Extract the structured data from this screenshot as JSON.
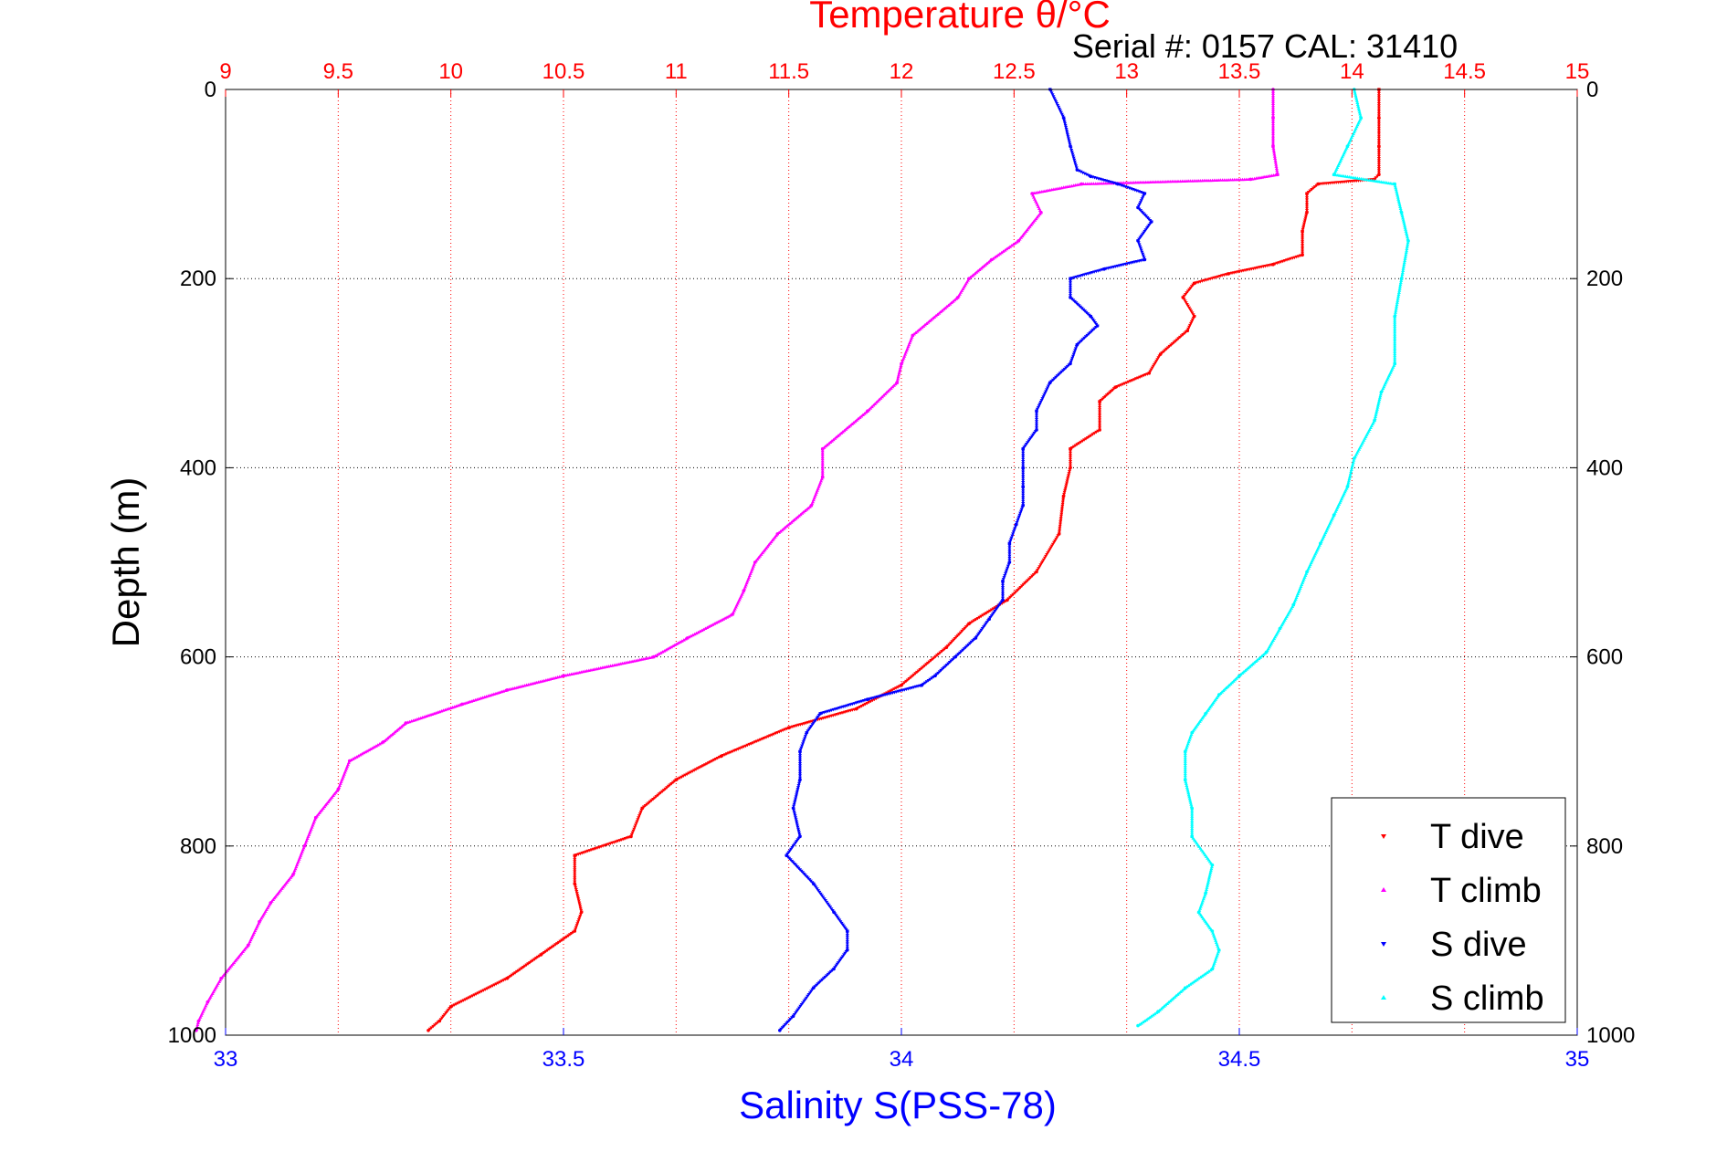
{
  "chart_data": {
    "type": "scatter",
    "title_top": "Temperature θ/°C",
    "serial_text": "Serial #: 0157  CAL: 31410",
    "xlabel_bottom": "Salinity S(PSS-78)",
    "ylabel": "Depth (m)",
    "top_axis": {
      "range": [
        9,
        15
      ],
      "ticks": [
        "9",
        "9.5",
        "10",
        "10.5",
        "11",
        "11.5",
        "12",
        "12.5",
        "13",
        "13.5",
        "14",
        "14.5",
        "15"
      ],
      "color": "#ff0000"
    },
    "bottom_axis": {
      "range": [
        33,
        35
      ],
      "ticks": [
        "33",
        "33.5",
        "34",
        "34.5",
        "35"
      ],
      "color": "#0000ff"
    },
    "y_axis": {
      "range": [
        0,
        1000
      ],
      "reversed": true,
      "ticks": [
        "0",
        "200",
        "400",
        "600",
        "800",
        "1000"
      ]
    },
    "grid": true,
    "legend_position": "bottom-right",
    "series": [
      {
        "name": "T dive",
        "axis": "temperature",
        "color": "#ff0000",
        "marker": "triangle-down",
        "points": [
          [
            14.12,
            0
          ],
          [
            14.12,
            30
          ],
          [
            14.12,
            60
          ],
          [
            14.12,
            90
          ],
          [
            14.1,
            95
          ],
          [
            13.85,
            100
          ],
          [
            13.8,
            110
          ],
          [
            13.8,
            130
          ],
          [
            13.78,
            150
          ],
          [
            13.78,
            175
          ],
          [
            13.65,
            185
          ],
          [
            13.45,
            195
          ],
          [
            13.3,
            205
          ],
          [
            13.25,
            220
          ],
          [
            13.3,
            240
          ],
          [
            13.27,
            255
          ],
          [
            13.15,
            280
          ],
          [
            13.1,
            300
          ],
          [
            12.95,
            315
          ],
          [
            12.88,
            330
          ],
          [
            12.88,
            360
          ],
          [
            12.75,
            380
          ],
          [
            12.75,
            400
          ],
          [
            12.72,
            430
          ],
          [
            12.7,
            470
          ],
          [
            12.6,
            510
          ],
          [
            12.47,
            540
          ],
          [
            12.3,
            565
          ],
          [
            12.2,
            590
          ],
          [
            12.0,
            630
          ],
          [
            11.8,
            655
          ],
          [
            11.5,
            675
          ],
          [
            11.2,
            705
          ],
          [
            11.0,
            730
          ],
          [
            10.85,
            760
          ],
          [
            10.8,
            790
          ],
          [
            10.55,
            810
          ],
          [
            10.55,
            840
          ],
          [
            10.58,
            870
          ],
          [
            10.55,
            890
          ],
          [
            10.4,
            915
          ],
          [
            10.25,
            940
          ],
          [
            10.0,
            970
          ],
          [
            9.95,
            985
          ],
          [
            9.9,
            995
          ]
        ]
      },
      {
        "name": "T climb",
        "axis": "temperature",
        "color": "#ff00ff",
        "marker": "triangle-up",
        "points": [
          [
            13.65,
            0
          ],
          [
            13.65,
            30
          ],
          [
            13.65,
            60
          ],
          [
            13.67,
            90
          ],
          [
            13.55,
            95
          ],
          [
            12.8,
            100
          ],
          [
            12.58,
            110
          ],
          [
            12.62,
            130
          ],
          [
            12.52,
            160
          ],
          [
            12.4,
            180
          ],
          [
            12.3,
            200
          ],
          [
            12.25,
            220
          ],
          [
            12.05,
            260
          ],
          [
            12.0,
            290
          ],
          [
            11.98,
            310
          ],
          [
            11.85,
            340
          ],
          [
            11.65,
            380
          ],
          [
            11.65,
            410
          ],
          [
            11.6,
            440
          ],
          [
            11.45,
            470
          ],
          [
            11.35,
            500
          ],
          [
            11.3,
            530
          ],
          [
            11.25,
            555
          ],
          [
            11.05,
            580
          ],
          [
            10.9,
            600
          ],
          [
            10.5,
            620
          ],
          [
            10.25,
            635
          ],
          [
            10.05,
            650
          ],
          [
            9.8,
            670
          ],
          [
            9.7,
            690
          ],
          [
            9.55,
            710
          ],
          [
            9.5,
            740
          ],
          [
            9.4,
            770
          ],
          [
            9.35,
            800
          ],
          [
            9.3,
            830
          ],
          [
            9.2,
            860
          ],
          [
            9.15,
            880
          ],
          [
            9.1,
            905
          ],
          [
            8.98,
            940
          ],
          [
            8.92,
            965
          ],
          [
            8.88,
            985
          ],
          [
            8.87,
            995
          ]
        ]
      },
      {
        "name": "S dive",
        "axis": "salinity",
        "color": "#0000ff",
        "marker": "triangle-down",
        "points": [
          [
            34.22,
            0
          ],
          [
            34.24,
            30
          ],
          [
            34.25,
            60
          ],
          [
            34.26,
            85
          ],
          [
            34.28,
            92
          ],
          [
            34.32,
            100
          ],
          [
            34.36,
            110
          ],
          [
            34.35,
            125
          ],
          [
            34.37,
            140
          ],
          [
            34.35,
            160
          ],
          [
            34.36,
            180
          ],
          [
            34.3,
            190
          ],
          [
            34.25,
            200
          ],
          [
            34.25,
            220
          ],
          [
            34.28,
            240
          ],
          [
            34.29,
            250
          ],
          [
            34.26,
            270
          ],
          [
            34.25,
            290
          ],
          [
            34.22,
            310
          ],
          [
            34.2,
            340
          ],
          [
            34.2,
            360
          ],
          [
            34.18,
            380
          ],
          [
            34.18,
            400
          ],
          [
            34.18,
            420
          ],
          [
            34.18,
            440
          ],
          [
            34.17,
            460
          ],
          [
            34.16,
            480
          ],
          [
            34.16,
            500
          ],
          [
            34.15,
            520
          ],
          [
            34.15,
            540
          ],
          [
            34.13,
            560
          ],
          [
            34.11,
            580
          ],
          [
            34.08,
            600
          ],
          [
            34.05,
            620
          ],
          [
            34.03,
            630
          ],
          [
            33.95,
            645
          ],
          [
            33.88,
            660
          ],
          [
            33.86,
            680
          ],
          [
            33.85,
            700
          ],
          [
            33.85,
            730
          ],
          [
            33.84,
            760
          ],
          [
            33.85,
            790
          ],
          [
            33.83,
            810
          ],
          [
            33.87,
            840
          ],
          [
            33.9,
            870
          ],
          [
            33.92,
            890
          ],
          [
            33.92,
            910
          ],
          [
            33.9,
            930
          ],
          [
            33.87,
            950
          ],
          [
            33.84,
            980
          ],
          [
            33.82,
            995
          ]
        ]
      },
      {
        "name": "S climb",
        "axis": "salinity",
        "color": "#00ffff",
        "marker": "triangle-up",
        "points": [
          [
            34.67,
            0
          ],
          [
            34.68,
            30
          ],
          [
            34.66,
            60
          ],
          [
            34.64,
            90
          ],
          [
            34.73,
            100
          ],
          [
            34.74,
            130
          ],
          [
            34.75,
            160
          ],
          [
            34.74,
            200
          ],
          [
            34.73,
            240
          ],
          [
            34.73,
            290
          ],
          [
            34.71,
            320
          ],
          [
            34.7,
            350
          ],
          [
            34.67,
            390
          ],
          [
            34.66,
            420
          ],
          [
            34.64,
            450
          ],
          [
            34.62,
            480
          ],
          [
            34.6,
            510
          ],
          [
            34.58,
            545
          ],
          [
            34.56,
            570
          ],
          [
            34.54,
            595
          ],
          [
            34.5,
            620
          ],
          [
            34.47,
            640
          ],
          [
            34.45,
            660
          ],
          [
            34.43,
            680
          ],
          [
            34.42,
            700
          ],
          [
            34.42,
            730
          ],
          [
            34.43,
            760
          ],
          [
            34.43,
            790
          ],
          [
            34.46,
            820
          ],
          [
            34.45,
            850
          ],
          [
            34.44,
            870
          ],
          [
            34.46,
            890
          ],
          [
            34.47,
            910
          ],
          [
            34.46,
            930
          ],
          [
            34.42,
            950
          ],
          [
            34.38,
            975
          ],
          [
            34.35,
            990
          ]
        ]
      }
    ]
  }
}
